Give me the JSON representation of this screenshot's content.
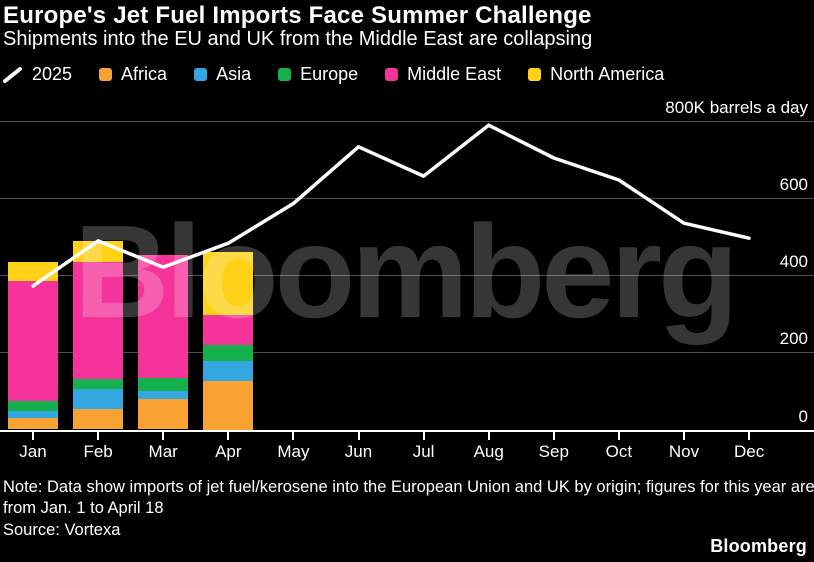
{
  "header": {
    "title": "Europe's Jet Fuel Imports Face Summer Challenge",
    "subtitle": "Shipments into the EU and UK from the Middle East are collapsing"
  },
  "legend": {
    "items": [
      {
        "label": "2025",
        "swatch_type": "line",
        "color": "#ffffff"
      },
      {
        "label": "Africa",
        "swatch_type": "square",
        "color": "#f7a233"
      },
      {
        "label": "Asia",
        "swatch_type": "square",
        "color": "#34a7e0"
      },
      {
        "label": "Europe",
        "swatch_type": "square",
        "color": "#15b04d"
      },
      {
        "label": "Middle East",
        "swatch_type": "square",
        "color": "#f5349b"
      },
      {
        "label": "North America",
        "swatch_type": "square",
        "color": "#ffd117"
      }
    ]
  },
  "watermark": "Bloomberg",
  "chart_data": {
    "type": "combo-stacked-bar-and-line",
    "unit": "K barrels a day",
    "categories": [
      "Jan",
      "Feb",
      "Mar",
      "Apr",
      "May",
      "Jun",
      "Jul",
      "Aug",
      "Sep",
      "Oct",
      "Nov",
      "Dec"
    ],
    "bar_categories": [
      "Jan",
      "Feb",
      "Mar",
      "Apr"
    ],
    "bar_series": [
      {
        "name": "Africa",
        "color": "#f7a233",
        "values": [
          31,
          52,
          78,
          125
        ]
      },
      {
        "name": "Asia",
        "color": "#34a7e0",
        "values": [
          17,
          52,
          23,
          52
        ]
      },
      {
        "name": "Europe",
        "color": "#15b04d",
        "values": [
          27,
          26,
          32,
          43
        ]
      },
      {
        "name": "Middle East",
        "color": "#f5349b",
        "values": [
          310,
          304,
          320,
          78
        ]
      },
      {
        "name": "North America",
        "color": "#ffd117",
        "values": [
          50,
          56,
          0,
          161
        ]
      }
    ],
    "line_series": {
      "name": "2025",
      "color": "#ffffff",
      "values": [
        372,
        489,
        421,
        483,
        586,
        733,
        657,
        789,
        704,
        647,
        535,
        496
      ]
    },
    "ylim": [
      0,
      800
    ],
    "yticks": [
      {
        "value": 0,
        "label": "0"
      },
      {
        "value": 200,
        "label": "200"
      },
      {
        "value": 400,
        "label": "400"
      },
      {
        "value": 600,
        "label": "600"
      },
      {
        "value": 800,
        "label": "800K barrels a day"
      }
    ],
    "grid": "horizontal",
    "legend_position": "top"
  },
  "footer": {
    "note": "Note: Data show imports of jet fuel/kerosene into the European Union and UK by origin; figures for this year are from Jan. 1 to April 18",
    "source": "Source: Vortexa",
    "logo": "Bloomberg"
  }
}
